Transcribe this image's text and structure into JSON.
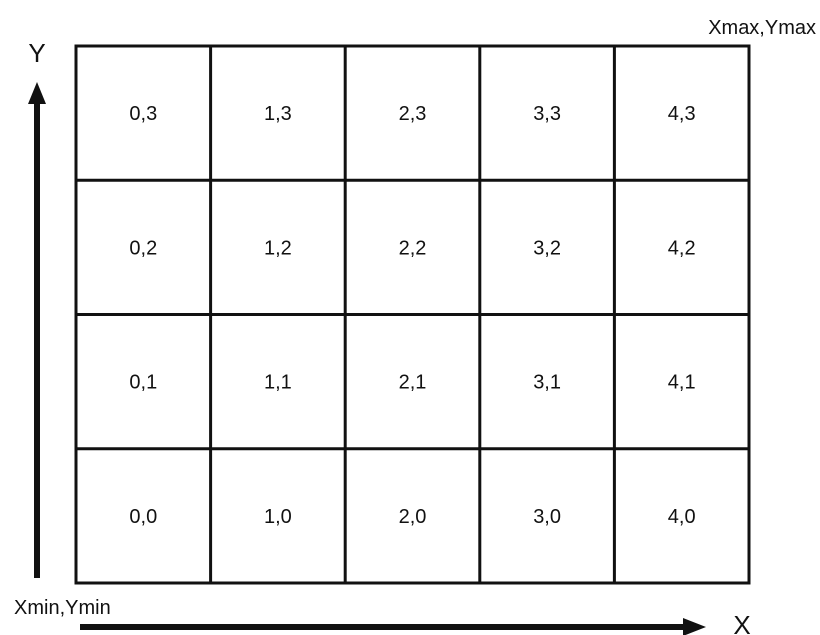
{
  "axes": {
    "x_label": "X",
    "y_label": "Y"
  },
  "corners": {
    "min_label": "Xmin,Ymin",
    "max_label": "Xmax,Ymax"
  },
  "grid": {
    "columns": 5,
    "rows": 4,
    "cells": [
      [
        "0,3",
        "1,3",
        "2,3",
        "3,3",
        "4,3"
      ],
      [
        "0,2",
        "1,2",
        "2,2",
        "3,2",
        "4,2"
      ],
      [
        "0,1",
        "1,1",
        "2,1",
        "3,1",
        "4,1"
      ],
      [
        "0,0",
        "1,0",
        "2,0",
        "3,0",
        "4,0"
      ]
    ]
  },
  "colors": {
    "line": "#111111",
    "background": "#ffffff"
  }
}
